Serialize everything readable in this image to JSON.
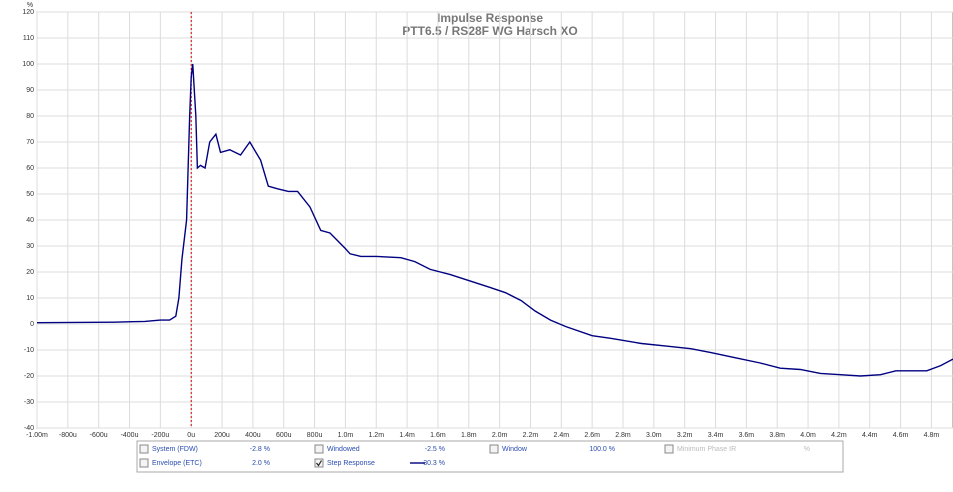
{
  "chart_data": {
    "type": "line",
    "title": "Impulse Response",
    "subtitle": "PTT6.5 / RS28F WG Harsch XO",
    "y_unit": "%",
    "x": [
      -1.0,
      -0.5,
      -0.3,
      -0.2,
      -0.14,
      -0.1,
      -0.08,
      -0.06,
      -0.03,
      -0.01,
      0,
      0.01,
      0.03,
      0.04,
      0.06,
      0.09,
      0.12,
      0.16,
      0.19,
      0.25,
      0.32,
      0.38,
      0.45,
      0.5,
      0.56,
      0.63,
      0.69,
      0.77,
      0.84,
      0.9,
      1.0,
      1.03,
      1.1,
      1.2,
      1.36,
      1.45,
      1.55,
      1.68,
      1.81,
      1.94,
      2.04,
      2.14,
      2.23,
      2.33,
      2.43,
      2.6,
      2.72,
      2.92,
      3.08,
      3.24,
      3.37,
      3.53,
      3.69,
      3.82,
      3.95,
      4.08,
      4.21,
      4.34,
      4.47,
      4.57,
      4.77,
      4.86,
      4.94
    ],
    "series": [
      {
        "name": "Step Response",
        "color": "#000080",
        "values": [
          0.5,
          0.7,
          1,
          1.5,
          1.5,
          3,
          10,
          25,
          40,
          80,
          95,
          100,
          80,
          60,
          61,
          60,
          70,
          73,
          66,
          67,
          65,
          70,
          63,
          53,
          52,
          51,
          51,
          45,
          36,
          35,
          29,
          27,
          26,
          26,
          25.5,
          24,
          21,
          19,
          16.5,
          14,
          12,
          9,
          5,
          1.5,
          -1,
          -4.5,
          -5.5,
          -7.5,
          -8.5,
          -9.5,
          -11,
          -13,
          -15,
          -17,
          -17.5,
          -19,
          -19.5,
          -20,
          -19.5,
          -18,
          -18,
          -16,
          -13.5
        ]
      }
    ],
    "xlim": [
      -1.0,
      4.94
    ],
    "ylim": [
      -40,
      120
    ],
    "xticks": [
      {
        "value": -1.0,
        "label": "-1.00m"
      },
      {
        "value": -0.8,
        "label": "-800u"
      },
      {
        "value": -0.6,
        "label": "-600u"
      },
      {
        "value": -0.4,
        "label": "-400u"
      },
      {
        "value": -0.2,
        "label": "-200u"
      },
      {
        "value": 0,
        "label": "0u"
      },
      {
        "value": 0.2,
        "label": "200u"
      },
      {
        "value": 0.4,
        "label": "400u"
      },
      {
        "value": 0.6,
        "label": "600u"
      },
      {
        "value": 0.8,
        "label": "800u"
      },
      {
        "value": 1.0,
        "label": "1.0m"
      },
      {
        "value": 1.2,
        "label": "1.2m"
      },
      {
        "value": 1.4,
        "label": "1.4m"
      },
      {
        "value": 1.6,
        "label": "1.6m"
      },
      {
        "value": 1.8,
        "label": "1.8m"
      },
      {
        "value": 2.0,
        "label": "2.0m"
      },
      {
        "value": 2.2,
        "label": "2.2m"
      },
      {
        "value": 2.4,
        "label": "2.4m"
      },
      {
        "value": 2.6,
        "label": "2.6m"
      },
      {
        "value": 2.8,
        "label": "2.8m"
      },
      {
        "value": 3.0,
        "label": "3.0m"
      },
      {
        "value": 3.2,
        "label": "3.2m"
      },
      {
        "value": 3.4,
        "label": "3.4m"
      },
      {
        "value": 3.6,
        "label": "3.6m"
      },
      {
        "value": 3.8,
        "label": "3.8m"
      },
      {
        "value": 4.0,
        "label": "4.0m"
      },
      {
        "value": 4.2,
        "label": "4.2m"
      },
      {
        "value": 4.4,
        "label": "4.4m"
      },
      {
        "value": 4.6,
        "label": "4.6m"
      },
      {
        "value": 4.8,
        "label": "4.8m"
      }
    ],
    "yticks": [
      120,
      110,
      100,
      90,
      80,
      70,
      60,
      50,
      40,
      30,
      20,
      10,
      0,
      -10,
      -20,
      -30,
      -40
    ],
    "grid": true,
    "marker_x": 0
  },
  "controls": [
    {
      "label": "System (FDW)",
      "value": "-2.8 %",
      "checked": false,
      "enabled": true
    },
    {
      "label": "Windowed",
      "value": "-2.5 %",
      "checked": false,
      "enabled": true
    },
    {
      "label": "Window",
      "value": "100.0 %",
      "checked": false,
      "enabled": true
    },
    {
      "label": "Minimum Phase IR",
      "value": "%",
      "checked": false,
      "enabled": false
    },
    {
      "label": "Envelope (ETC)",
      "value": "2.0 %",
      "checked": false,
      "enabled": true
    },
    {
      "label": "Step Response",
      "value": "30.3 %",
      "checked": true,
      "enabled": true
    }
  ]
}
